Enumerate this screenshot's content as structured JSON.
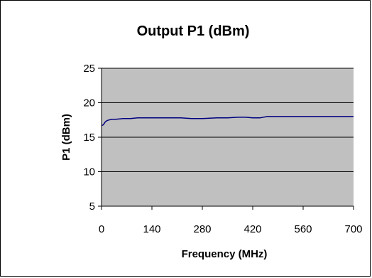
{
  "chart_data": {
    "type": "line",
    "title": "Output P1 (dBm)",
    "xlabel": "Frequency (MHz)",
    "ylabel": "P1 (dBm)",
    "xlim": [
      0,
      700
    ],
    "ylim": [
      5,
      25
    ],
    "x_ticks": [
      0,
      140,
      280,
      420,
      560,
      700
    ],
    "y_ticks": [
      5,
      10,
      15,
      20,
      25
    ],
    "grid": true,
    "legend": "none",
    "colors": {
      "plot_background": "#c0c0c0",
      "line": "#000080",
      "gridline": "#000000"
    },
    "series": [
      {
        "x": [
          1,
          5,
          10,
          15,
          20,
          30,
          40,
          60,
          80,
          100,
          140,
          180,
          220,
          250,
          280,
          320,
          350,
          380,
          400,
          420,
          440,
          460,
          500,
          560,
          620,
          700
        ],
        "values": [
          16.7,
          16.8,
          17.2,
          17.4,
          17.5,
          17.6,
          17.6,
          17.7,
          17.7,
          17.8,
          17.8,
          17.8,
          17.8,
          17.7,
          17.7,
          17.8,
          17.8,
          17.9,
          17.9,
          17.8,
          17.8,
          18.0,
          18.0,
          18.0,
          18.0,
          18.0
        ]
      }
    ]
  }
}
